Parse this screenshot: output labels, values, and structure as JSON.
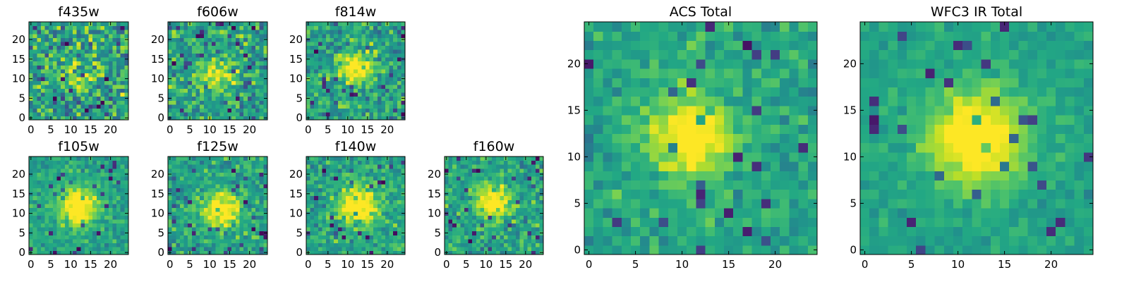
{
  "chart_data": [
    {
      "type": "heatmap",
      "title": "f435w",
      "grid": false,
      "colormap": "viridis",
      "colorbar": false,
      "rows": 25,
      "cols": 25,
      "center": [
        12,
        11
      ],
      "peak": 0.2,
      "sigma": 3.0,
      "noise": 0.32,
      "seed": 11,
      "xticks": [
        0,
        5,
        10,
        15,
        20
      ],
      "yticks": [
        0,
        5,
        10,
        15,
        20
      ],
      "xlim": [
        -0.5,
        24.5
      ],
      "ylim": [
        -0.5,
        24.5
      ]
    },
    {
      "type": "heatmap",
      "title": "f606w",
      "grid": false,
      "colormap": "viridis",
      "colorbar": false,
      "rows": 25,
      "cols": 25,
      "center": [
        12,
        11
      ],
      "peak": 0.4,
      "sigma": 3.0,
      "noise": 0.26,
      "seed": 23,
      "xticks": [
        0,
        5,
        10,
        15,
        20
      ],
      "yticks": [
        0,
        5,
        10,
        15,
        20
      ],
      "xlim": [
        -0.5,
        24.5
      ],
      "ylim": [
        -0.5,
        24.5
      ]
    },
    {
      "type": "heatmap",
      "title": "f814w",
      "grid": false,
      "colormap": "viridis",
      "colorbar": false,
      "rows": 25,
      "cols": 25,
      "center": [
        12,
        13
      ],
      "peak": 0.45,
      "sigma": 3.0,
      "noise": 0.25,
      "seed": 37,
      "xticks": [
        0,
        5,
        10,
        15,
        20
      ],
      "yticks": [
        0,
        5,
        10,
        15,
        20
      ],
      "xlim": [
        -0.5,
        24.5
      ],
      "ylim": [
        -0.5,
        24.5
      ]
    },
    {
      "type": "heatmap",
      "title": "f105w",
      "grid": false,
      "colormap": "viridis",
      "colorbar": false,
      "rows": 25,
      "cols": 25,
      "center": [
        12,
        12
      ],
      "peak": 0.6,
      "sigma": 3.3,
      "noise": 0.16,
      "seed": 41,
      "xticks": [
        0,
        5,
        10,
        15,
        20
      ],
      "yticks": [
        0,
        5,
        10,
        15,
        20
      ],
      "xlim": [
        -0.5,
        24.5
      ],
      "ylim": [
        -0.5,
        24.5
      ]
    },
    {
      "type": "heatmap",
      "title": "f125w",
      "grid": false,
      "colormap": "viridis",
      "colorbar": false,
      "rows": 25,
      "cols": 25,
      "center": [
        13,
        11
      ],
      "peak": 0.55,
      "sigma": 3.1,
      "noise": 0.2,
      "seed": 53,
      "xticks": [
        0,
        5,
        10,
        15,
        20
      ],
      "yticks": [
        0,
        5,
        10,
        15,
        20
      ],
      "xlim": [
        -0.5,
        24.5
      ],
      "ylim": [
        -0.5,
        24.5
      ]
    },
    {
      "type": "heatmap",
      "title": "f140w",
      "grid": false,
      "colormap": "viridis",
      "colorbar": false,
      "rows": 25,
      "cols": 25,
      "center": [
        13,
        12
      ],
      "peak": 0.6,
      "sigma": 3.3,
      "noise": 0.2,
      "seed": 67,
      "xticks": [
        0,
        5,
        10,
        15,
        20
      ],
      "yticks": [
        0,
        5,
        10,
        15,
        20
      ],
      "xlim": [
        -0.5,
        24.5
      ],
      "ylim": [
        -0.5,
        24.5
      ]
    },
    {
      "type": "heatmap",
      "title": "f160w",
      "grid": false,
      "colormap": "viridis",
      "colorbar": false,
      "rows": 25,
      "cols": 25,
      "center": [
        12,
        13
      ],
      "peak": 0.55,
      "sigma": 3.1,
      "noise": 0.2,
      "seed": 71,
      "xticks": [
        0,
        5,
        10,
        15,
        20
      ],
      "yticks": [
        0,
        5,
        10,
        15,
        20
      ],
      "xlim": [
        -0.5,
        24.5
      ],
      "ylim": [
        -0.5,
        24.5
      ]
    },
    {
      "type": "heatmap",
      "title": "ACS Total",
      "grid": false,
      "colormap": "viridis",
      "colorbar": false,
      "rows": 25,
      "cols": 25,
      "center": [
        11,
        12
      ],
      "peak": 0.5,
      "sigma": 3.3,
      "noise": 0.16,
      "seed": 83,
      "xticks": [
        0,
        5,
        10,
        15,
        20
      ],
      "yticks": [
        0,
        5,
        10,
        15,
        20
      ],
      "xlim": [
        -0.5,
        24.5
      ],
      "ylim": [
        -0.5,
        24.5
      ]
    },
    {
      "type": "heatmap",
      "title": "WFC3 IR Total",
      "grid": false,
      "colormap": "viridis",
      "colorbar": false,
      "rows": 25,
      "cols": 25,
      "center": [
        12,
        12
      ],
      "peak": 0.62,
      "sigma": 3.5,
      "noise": 0.1,
      "seed": 97,
      "xticks": [
        0,
        5,
        10,
        15,
        20
      ],
      "yticks": [
        0,
        5,
        10,
        15,
        20
      ],
      "xlim": [
        -0.5,
        24.5
      ],
      "ylim": [
        -0.5,
        24.5
      ]
    }
  ]
}
